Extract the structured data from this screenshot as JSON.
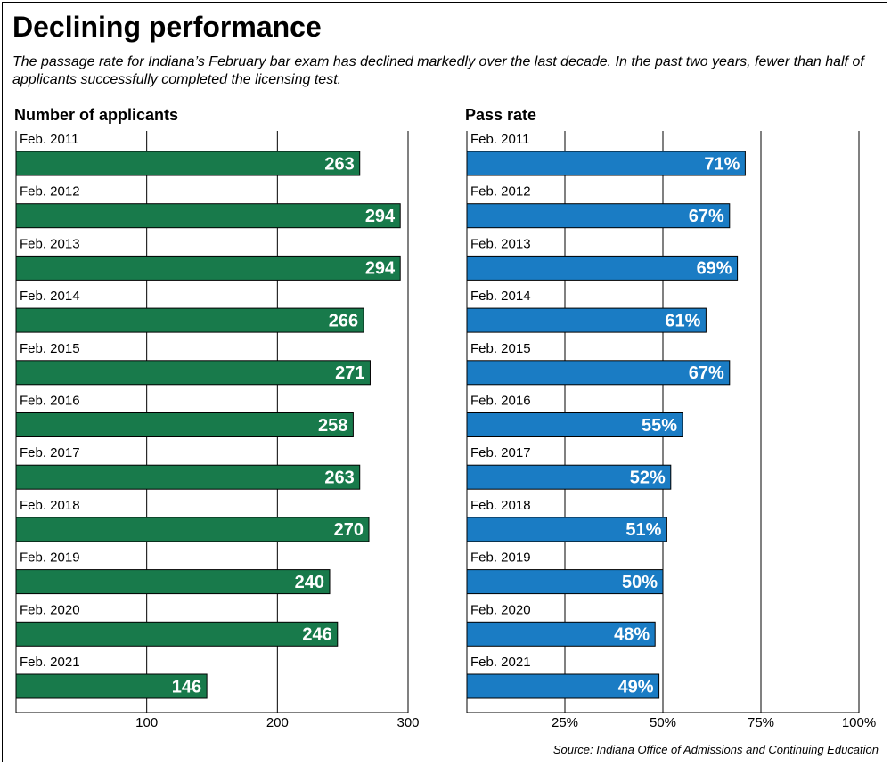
{
  "title": "Declining performance",
  "subtitle": "The passage rate for Indiana’s February bar exam has declined markedly over the last decade. In the past two years, fewer than half of applicants successfully completed the licensing test.",
  "source": "Source: Indiana Office of Admissions and Continuing Education",
  "chart_data": [
    {
      "type": "bar",
      "horizontal": true,
      "title": "Number of applicants",
      "categories": [
        "Feb. 2011",
        "Feb. 2012",
        "Feb. 2013",
        "Feb. 2014",
        "Feb. 2015",
        "Feb. 2016",
        "Feb. 2017",
        "Feb. 2018",
        "Feb. 2019",
        "Feb. 2020",
        "Feb. 2021"
      ],
      "values": [
        263,
        294,
        294,
        266,
        271,
        258,
        263,
        270,
        240,
        246,
        146
      ],
      "color": "#187a4b",
      "xlim": [
        0,
        300
      ],
      "xticks": [
        100,
        200,
        300
      ],
      "grid": true
    },
    {
      "type": "bar",
      "horizontal": true,
      "title": "Pass rate",
      "categories": [
        "Feb. 2011",
        "Feb. 2012",
        "Feb. 2013",
        "Feb. 2014",
        "Feb. 2015",
        "Feb. 2016",
        "Feb. 2017",
        "Feb. 2018",
        "Feb. 2019",
        "Feb. 2020",
        "Feb. 2021"
      ],
      "values": [
        71,
        67,
        69,
        61,
        67,
        55,
        52,
        51,
        50,
        48,
        49
      ],
      "value_labels": [
        "71%",
        "67%",
        "69%",
        "61%",
        "67%",
        "55%",
        "52%",
        "51%",
        "50%",
        "48%",
        "49%"
      ],
      "color": "#1a7cc4",
      "xlim": [
        0,
        100
      ],
      "xticks": [
        {
          "value": 25,
          "label": "25%"
        },
        {
          "value": 50,
          "label": "50%"
        },
        {
          "value": 75,
          "label": "75%"
        },
        {
          "value": 100,
          "label": "100%"
        }
      ],
      "grid": true
    }
  ]
}
